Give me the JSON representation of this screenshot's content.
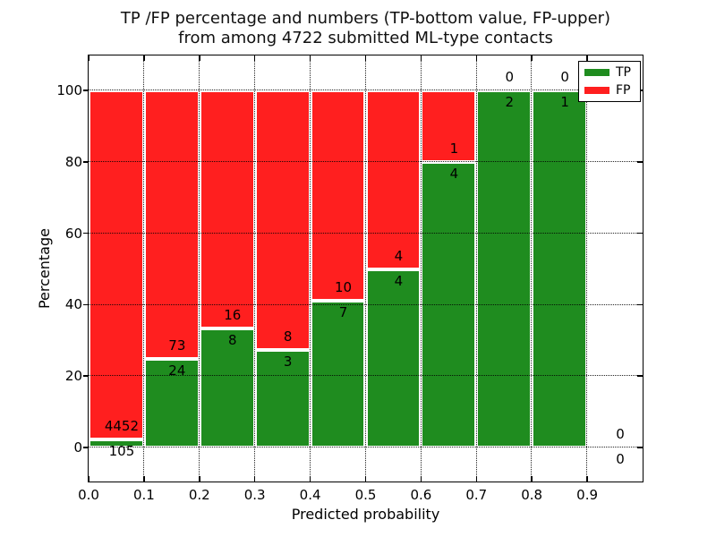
{
  "title": {
    "line1": "TP /FP percentage and numbers (TP-bottom value, FP-upper)",
    "line2": "from among 4722 submitted ML-type contacts"
  },
  "chart_data": {
    "type": "bar",
    "stacked": true,
    "normalized_to_percent": true,
    "xlabel": "Predicted probability",
    "ylabel": "Percentage",
    "xlim": [
      0.0,
      1.0
    ],
    "ylim": [
      -10,
      110
    ],
    "grid": "dotted black, both axes, drawn above bars",
    "legend_position": "upper right",
    "bin_width": 0.1,
    "xtick_values": [
      0.0,
      0.1,
      0.2,
      0.3,
      0.4,
      0.5,
      0.6,
      0.7,
      0.8,
      0.9
    ],
    "xtick_labels": [
      "0.0",
      "0.1",
      "0.2",
      "0.3",
      "0.4",
      "0.5",
      "0.6",
      "0.7",
      "0.8",
      "0.9"
    ],
    "ytick_values": [
      0,
      20,
      40,
      60,
      80,
      100
    ],
    "ytick_labels": [
      "0",
      "20",
      "40",
      "60",
      "80",
      "100"
    ],
    "bins": [
      {
        "x_start": 0.0,
        "x_end": 0.1,
        "tp": 105,
        "fp": 4452
      },
      {
        "x_start": 0.1,
        "x_end": 0.2,
        "tp": 24,
        "fp": 73
      },
      {
        "x_start": 0.2,
        "x_end": 0.3,
        "tp": 8,
        "fp": 16
      },
      {
        "x_start": 0.3,
        "x_end": 0.4,
        "tp": 3,
        "fp": 8
      },
      {
        "x_start": 0.4,
        "x_end": 0.5,
        "tp": 7,
        "fp": 10
      },
      {
        "x_start": 0.5,
        "x_end": 0.6,
        "tp": 4,
        "fp": 4
      },
      {
        "x_start": 0.6,
        "x_end": 0.7,
        "tp": 4,
        "fp": 1
      },
      {
        "x_start": 0.7,
        "x_end": 0.8,
        "tp": 2,
        "fp": 0
      },
      {
        "x_start": 0.8,
        "x_end": 0.9,
        "tp": 1,
        "fp": 0
      },
      {
        "x_start": 0.9,
        "x_end": 1.0,
        "tp": 0,
        "fp": 0
      }
    ],
    "legend": [
      {
        "label": "TP",
        "color": "#1f8c1f"
      },
      {
        "label": "FP",
        "color": "#ff1f1f"
      }
    ],
    "colors": {
      "tp_bar": "#1f8c1f",
      "fp_bar": "#ff1f1f",
      "bar_edge": "#ffffff",
      "grid": "#000000",
      "text": "#000000",
      "background": "#ffffff"
    }
  }
}
